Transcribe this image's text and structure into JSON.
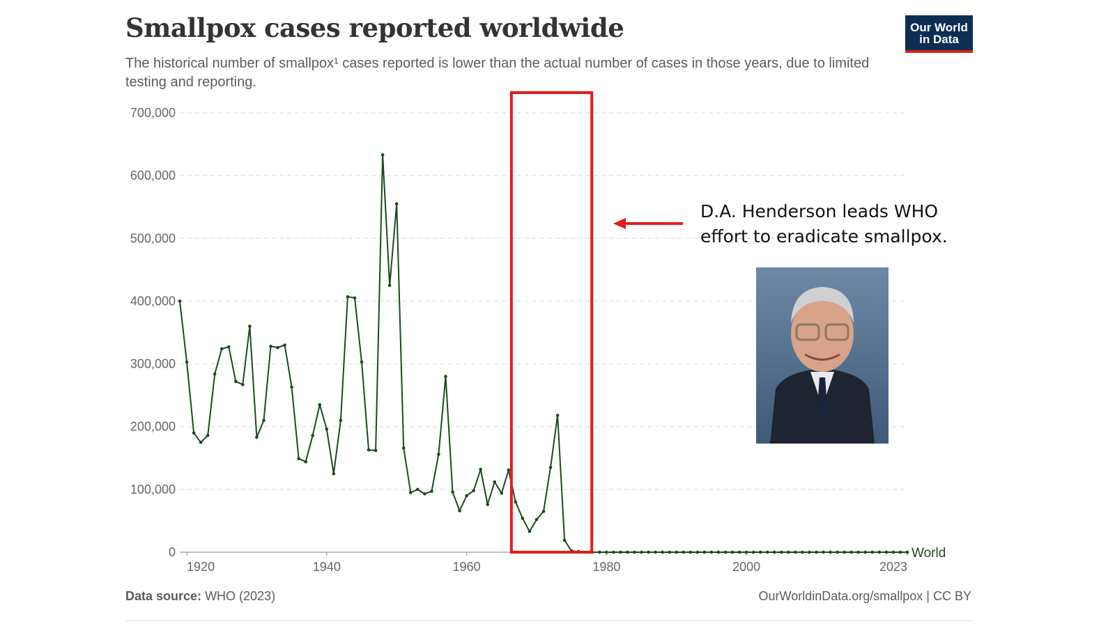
{
  "chart_data": {
    "type": "line",
    "title": "Smallpox cases reported worldwide",
    "subtitle": "The historical number of smallpox¹ cases reported is lower than the actual number of cases in those years, due to limited testing and reporting.",
    "xlabel": "",
    "ylabel": "",
    "xlim": [
      1919,
      2023
    ],
    "ylim": [
      0,
      700000
    ],
    "x_ticks": [
      1920,
      1940,
      1960,
      1980,
      2000,
      2023
    ],
    "y_ticks": [
      0,
      100000,
      200000,
      300000,
      400000,
      500000,
      600000,
      700000
    ],
    "y_tick_labels": [
      "0",
      "100,000",
      "200,000",
      "300,000",
      "400,000",
      "500,000",
      "600,000",
      "700,000"
    ],
    "grid": "horizontal dashed",
    "line_color": "#1c4a1e",
    "series": [
      {
        "name": "World",
        "x": [
          1919,
          1920,
          1921,
          1922,
          1923,
          1924,
          1925,
          1926,
          1927,
          1928,
          1929,
          1930,
          1931,
          1932,
          1933,
          1934,
          1935,
          1936,
          1937,
          1938,
          1939,
          1940,
          1941,
          1942,
          1943,
          1944,
          1945,
          1946,
          1947,
          1948,
          1949,
          1950,
          1951,
          1952,
          1953,
          1954,
          1955,
          1956,
          1957,
          1958,
          1959,
          1960,
          1961,
          1962,
          1963,
          1964,
          1965,
          1966,
          1967,
          1968,
          1969,
          1970,
          1971,
          1972,
          1973,
          1974,
          1975,
          1976,
          1977,
          1978,
          1979,
          1980,
          1981,
          1982,
          1983,
          1984,
          1985,
          1986,
          1987,
          1988,
          1989,
          1990,
          1991,
          1992,
          1993,
          1994,
          1995,
          1996,
          1997,
          1998,
          1999,
          2000,
          2001,
          2002,
          2003,
          2004,
          2005,
          2006,
          2007,
          2008,
          2009,
          2010,
          2011,
          2012,
          2013,
          2014,
          2015,
          2016,
          2017,
          2018,
          2019,
          2020,
          2021,
          2022,
          2023
        ],
        "y": [
          400000,
          303000,
          190000,
          175000,
          186000,
          284000,
          324000,
          327000,
          272000,
          267000,
          360000,
          183000,
          210000,
          328000,
          326000,
          330000,
          263000,
          149000,
          144000,
          186000,
          235000,
          196000,
          125000,
          210000,
          407000,
          405000,
          303000,
          163000,
          162000,
          633000,
          425000,
          555000,
          166000,
          95000,
          100000,
          93000,
          97000,
          156000,
          280000,
          96000,
          66000,
          90000,
          98000,
          132000,
          76000,
          112000,
          94000,
          131000,
          80000,
          54000,
          33000,
          52000,
          65000,
          135000,
          218000,
          19000,
          2000,
          1000,
          0,
          0,
          0,
          0,
          0,
          0,
          0,
          0,
          0,
          0,
          0,
          0,
          0,
          0,
          0,
          0,
          0,
          0,
          0,
          0,
          0,
          0,
          0,
          0,
          0,
          0,
          0,
          0,
          0,
          0,
          0,
          0,
          0,
          0,
          0,
          0,
          0,
          0,
          0,
          0,
          0,
          0,
          0,
          0,
          0,
          0,
          0
        ]
      }
    ],
    "highlight_range": [
      1967,
      1977
    ],
    "annotation": {
      "line1": "D.A. Henderson leads WHO",
      "line2": "effort to eradicate smallpox."
    },
    "highlight_color": "#e41c1c"
  },
  "logo": {
    "line1": "Our World",
    "line2": "in Data"
  },
  "footer": {
    "source_label": "Data source:",
    "source_value": "WHO (2023)",
    "url": "OurWorldinData.org/smallpox | CC BY"
  }
}
